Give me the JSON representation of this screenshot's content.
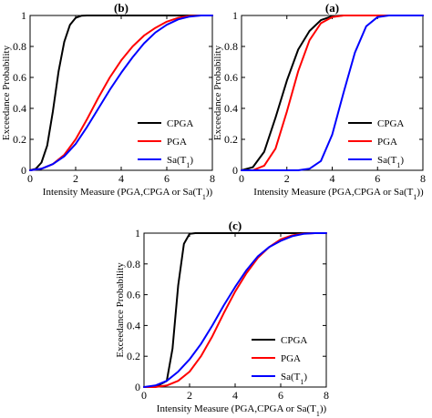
{
  "chart_data": [
    {
      "type": "line",
      "title": "(b)",
      "xlabel": "Intensity Measure (PGA,CPGA or Sa(T1))",
      "ylabel": "Exceedance Probability",
      "xlim": [
        0,
        8
      ],
      "ylim": [
        0,
        1
      ],
      "xticks": [
        "0",
        "2",
        "4",
        "6",
        "8"
      ],
      "yticks": [
        "0",
        "0.2",
        "0.4",
        "0.6",
        "0.8",
        "1"
      ],
      "legend_position": "lower-right",
      "grid": false,
      "series": [
        {
          "name": "CPGA",
          "color": "#000000",
          "x": [
            0,
            0.25,
            0.5,
            0.75,
            1.0,
            1.25,
            1.5,
            1.75,
            2.0,
            2.25,
            2.5,
            3.0,
            8.0
          ],
          "y": [
            0,
            0.01,
            0.05,
            0.16,
            0.38,
            0.64,
            0.83,
            0.94,
            0.985,
            0.998,
            1.0,
            1.0,
            1.0
          ]
        },
        {
          "name": "PGA",
          "color": "#ff0000",
          "x": [
            0,
            0.5,
            1.0,
            1.5,
            2.0,
            2.5,
            3.0,
            3.5,
            4.0,
            4.5,
            5.0,
            5.5,
            6.0,
            6.5,
            7.0,
            7.5,
            8.0
          ],
          "y": [
            0,
            0.01,
            0.04,
            0.1,
            0.2,
            0.33,
            0.47,
            0.6,
            0.71,
            0.8,
            0.87,
            0.92,
            0.96,
            0.985,
            0.997,
            1.0,
            1.0
          ]
        },
        {
          "name": "Sa(T1)",
          "color": "#0000ff",
          "x": [
            0,
            0.5,
            1.0,
            1.5,
            2.0,
            2.5,
            3.0,
            3.5,
            4.0,
            4.5,
            5.0,
            5.5,
            6.0,
            6.5,
            7.0,
            7.5,
            8.0
          ],
          "y": [
            0,
            0.01,
            0.04,
            0.09,
            0.17,
            0.28,
            0.4,
            0.52,
            0.63,
            0.73,
            0.82,
            0.89,
            0.94,
            0.975,
            0.993,
            1.0,
            1.0
          ]
        }
      ]
    },
    {
      "type": "line",
      "title": "(a)",
      "xlabel": "Intensity Measure (PGA,CPGA or Sa(T1))",
      "ylabel": "Exceedance Probability",
      "xlim": [
        0,
        8
      ],
      "ylim": [
        0,
        1
      ],
      "xticks": [
        "0",
        "2",
        "4",
        "6",
        "8"
      ],
      "yticks": [
        "0",
        "0.2",
        "0.4",
        "0.6",
        "0.8",
        "1"
      ],
      "legend_position": "lower-right",
      "grid": false,
      "series": [
        {
          "name": "CPGA",
          "color": "#000000",
          "x": [
            0,
            0.5,
            1.0,
            1.5,
            2.0,
            2.5,
            3.0,
            3.5,
            4.0,
            4.5,
            5.0,
            8.0
          ],
          "y": [
            0,
            0.02,
            0.12,
            0.34,
            0.58,
            0.78,
            0.9,
            0.97,
            0.995,
            1.0,
            1.0,
            1.0
          ]
        },
        {
          "name": "PGA",
          "color": "#ff0000",
          "x": [
            0,
            0.5,
            1.0,
            1.5,
            2.0,
            2.5,
            3.0,
            3.5,
            4.0,
            4.5,
            5.0,
            8.0
          ],
          "y": [
            0,
            0.0,
            0.03,
            0.14,
            0.38,
            0.64,
            0.84,
            0.95,
            0.99,
            1.0,
            1.0,
            1.0
          ]
        },
        {
          "name": "Sa(T1)",
          "color": "#0000ff",
          "x": [
            0,
            2.5,
            3.0,
            3.5,
            4.0,
            4.5,
            5.0,
            5.5,
            6.0,
            6.5,
            7.0,
            8.0
          ],
          "y": [
            0,
            0.0,
            0.01,
            0.06,
            0.23,
            0.5,
            0.76,
            0.93,
            0.99,
            1.0,
            1.0,
            1.0
          ]
        }
      ]
    },
    {
      "type": "line",
      "title": "(c)",
      "xlabel": "Intensity Measure (PGA,CPGA or Sa(T1))",
      "ylabel": "Exceedance Probability",
      "xlim": [
        0,
        8
      ],
      "ylim": [
        0,
        1
      ],
      "xticks": [
        "0",
        "2",
        "4",
        "6",
        "8"
      ],
      "yticks": [
        "0",
        "0.2",
        "0.4",
        "0.6",
        "0.8",
        "1"
      ],
      "legend_position": "lower-right",
      "grid": false,
      "series": [
        {
          "name": "CPGA",
          "color": "#000000",
          "x": [
            0,
            0.5,
            1.0,
            1.25,
            1.5,
            1.75,
            2.0,
            2.25,
            2.5,
            8.0
          ],
          "y": [
            0,
            0.0,
            0.04,
            0.25,
            0.66,
            0.93,
            0.995,
            1.0,
            1.0,
            1.0
          ]
        },
        {
          "name": "PGA",
          "color": "#ff0000",
          "x": [
            0,
            0.5,
            1.0,
            1.5,
            2.0,
            2.5,
            3.0,
            3.5,
            4.0,
            4.5,
            5.0,
            5.5,
            6.0,
            6.5,
            7.0,
            7.5,
            8.0
          ],
          "y": [
            0,
            0.0,
            0.01,
            0.04,
            0.1,
            0.2,
            0.33,
            0.48,
            0.62,
            0.74,
            0.84,
            0.91,
            0.96,
            0.985,
            0.997,
            1.0,
            1.0
          ]
        },
        {
          "name": "Sa(T1)",
          "color": "#0000ff",
          "x": [
            0,
            0.5,
            1.0,
            1.5,
            2.0,
            2.5,
            3.0,
            3.5,
            4.0,
            4.5,
            5.0,
            5.5,
            6.0,
            6.5,
            7.0,
            7.5,
            8.0
          ],
          "y": [
            0,
            0.01,
            0.04,
            0.1,
            0.18,
            0.28,
            0.4,
            0.53,
            0.65,
            0.76,
            0.85,
            0.91,
            0.95,
            0.98,
            0.995,
            1.0,
            1.0
          ]
        }
      ]
    }
  ]
}
